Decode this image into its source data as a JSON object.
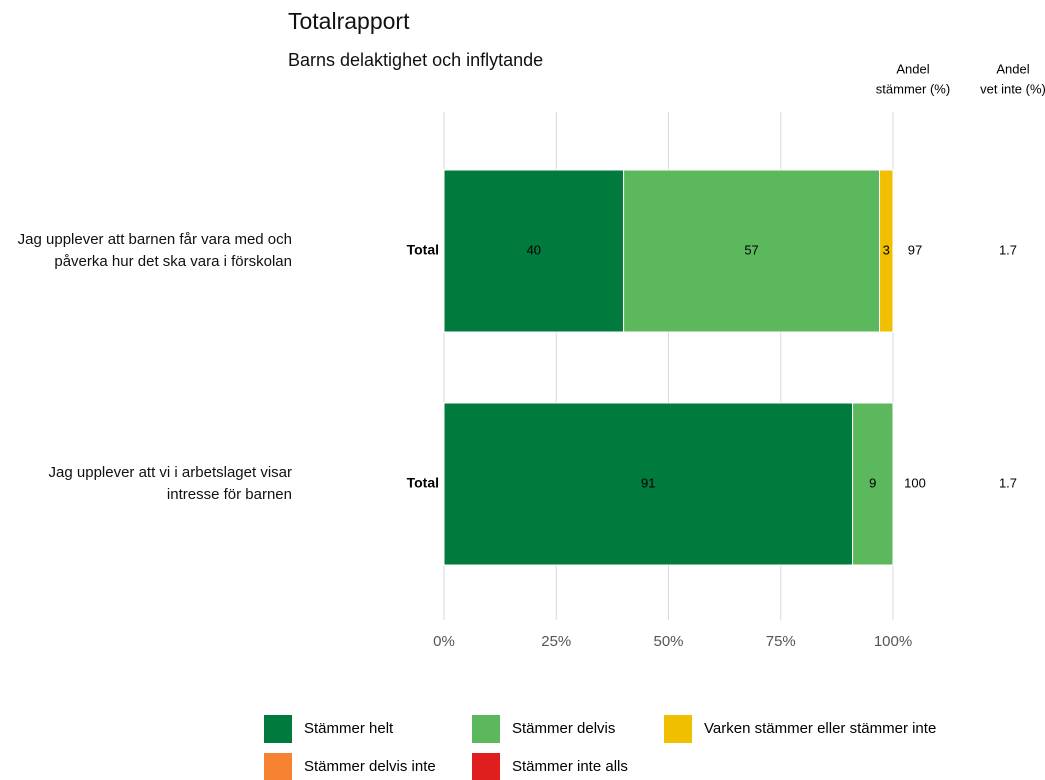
{
  "chart_data": {
    "type": "bar",
    "orientation": "horizontal",
    "stacked": true,
    "title": "Totalrapport",
    "subtitle": "Barns delaktighet och inflytande",
    "categories": [
      "Jag upplever att barnen får vara med och påverka hur det ska vara i förskolan",
      "Jag upplever att vi i arbetslaget visar intresse för barnen"
    ],
    "row_labels": [
      "Total",
      "Total"
    ],
    "series": [
      {
        "name": "Stämmer helt",
        "color": "#007a3d",
        "values": [
          40,
          91
        ]
      },
      {
        "name": "Stämmer delvis",
        "color": "#5cb85c",
        "values": [
          57,
          9
        ]
      },
      {
        "name": "Varken stämmer eller stämmer inte",
        "color": "#f0c000",
        "values": [
          3,
          null
        ]
      },
      {
        "name": "Stämmer delvis inte",
        "color": "#f58231",
        "values": [
          null,
          null
        ]
      },
      {
        "name": "Stämmer inte alls",
        "color": "#e01e1e",
        "values": [
          null,
          null
        ]
      }
    ],
    "xlim": [
      0,
      100
    ],
    "xticks": [
      {
        "value": 0,
        "label": "0%"
      },
      {
        "value": 25,
        "label": "25%"
      },
      {
        "value": 50,
        "label": "50%"
      },
      {
        "value": 75,
        "label": "75%"
      },
      {
        "value": 100,
        "label": "100%"
      }
    ],
    "grid": true,
    "legend": "bottom",
    "columns": [
      {
        "header": [
          "Andel",
          "stämmer (%)"
        ],
        "values": [
          97,
          100
        ]
      },
      {
        "header": [
          "Andel",
          "vet inte (%)"
        ],
        "values": [
          1.7,
          1.7
        ]
      }
    ]
  }
}
